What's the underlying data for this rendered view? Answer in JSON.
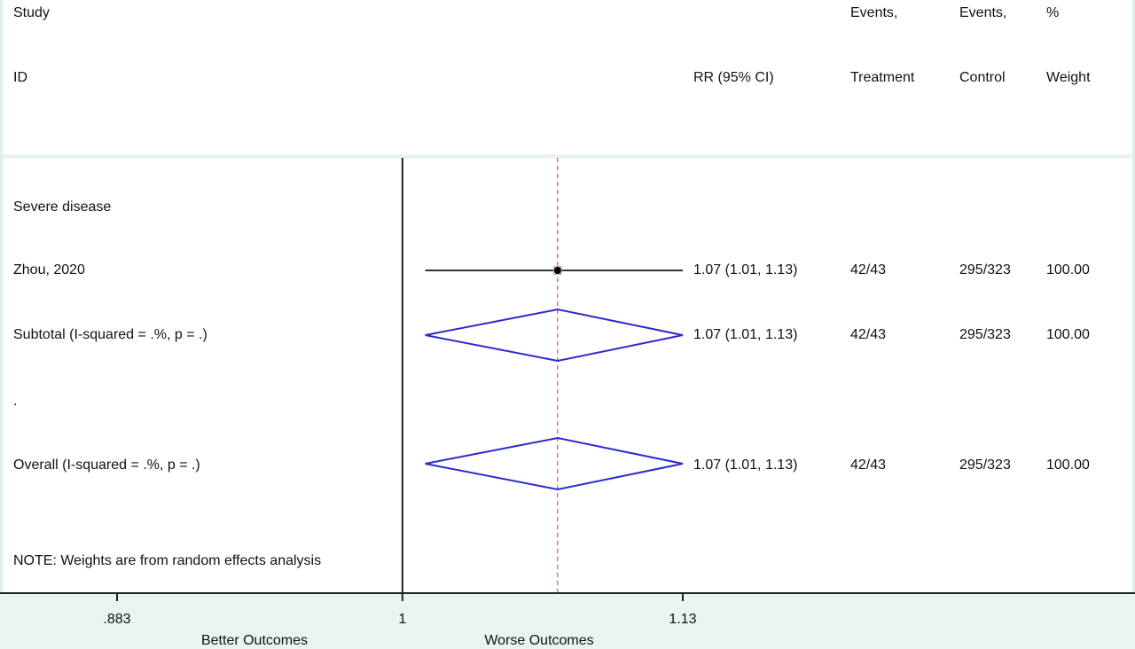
{
  "header": {
    "study_line1": "Study",
    "study_line2": "ID",
    "rr_label": "RR (95% CI)",
    "events_treatment_line1": "Events,",
    "events_treatment_line2": "Treatment",
    "events_control_line1": "Events,",
    "events_control_line2": "Control",
    "weight_line1": "%",
    "weight_line2": "Weight"
  },
  "rows": {
    "group": {
      "label": "Severe disease"
    },
    "study": {
      "label": "Zhou, 2020",
      "rr_text": "1.07 (1.01, 1.13)",
      "treatment": "42/43",
      "control": "295/323",
      "weight": "100.00"
    },
    "subtotal": {
      "label": "Subtotal  (I-squared = .%, p = .)",
      "rr_text": "1.07 (1.01, 1.13)",
      "treatment": "42/43",
      "control": "295/323",
      "weight": "100.00"
    },
    "dot": {
      "label": "."
    },
    "overall": {
      "label": "Overall  (I-squared = .%, p = .)",
      "rr_text": "1.07 (1.01, 1.13)",
      "treatment": "42/43",
      "control": "295/323",
      "weight": "100.00"
    },
    "note": {
      "label": "NOTE: Weights are from random effects analysis"
    }
  },
  "axis": {
    "ticks": [
      ".883",
      "1",
      "1.13"
    ],
    "left_label": "Better Outcomes",
    "right_label": "Worse Outcomes"
  },
  "colors": {
    "diamond": "#2a2ad0",
    "ref_line": "#b03060",
    "ci_line": "#333333",
    "axis": "#222222"
  },
  "chart_data": {
    "type": "forest",
    "scale": "log",
    "xlim": [
      0.883,
      1.13
    ],
    "x_ticks": [
      0.883,
      1,
      1.13
    ],
    "null_line": 1,
    "overall_line": 1.07,
    "studies": [
      {
        "name": "Zhou, 2020",
        "rr": 1.07,
        "ci": [
          1.01,
          1.13
        ],
        "events_treatment": "42/43",
        "events_control": "295/323",
        "weight": 100.0
      }
    ],
    "subtotal": {
      "name": "Subtotal  (I-squared = .%, p = .)",
      "rr": 1.07,
      "ci": [
        1.01,
        1.13
      ]
    },
    "overall": {
      "name": "Overall  (I-squared = .%, p = .)",
      "rr": 1.07,
      "ci": [
        1.01,
        1.13
      ]
    }
  }
}
